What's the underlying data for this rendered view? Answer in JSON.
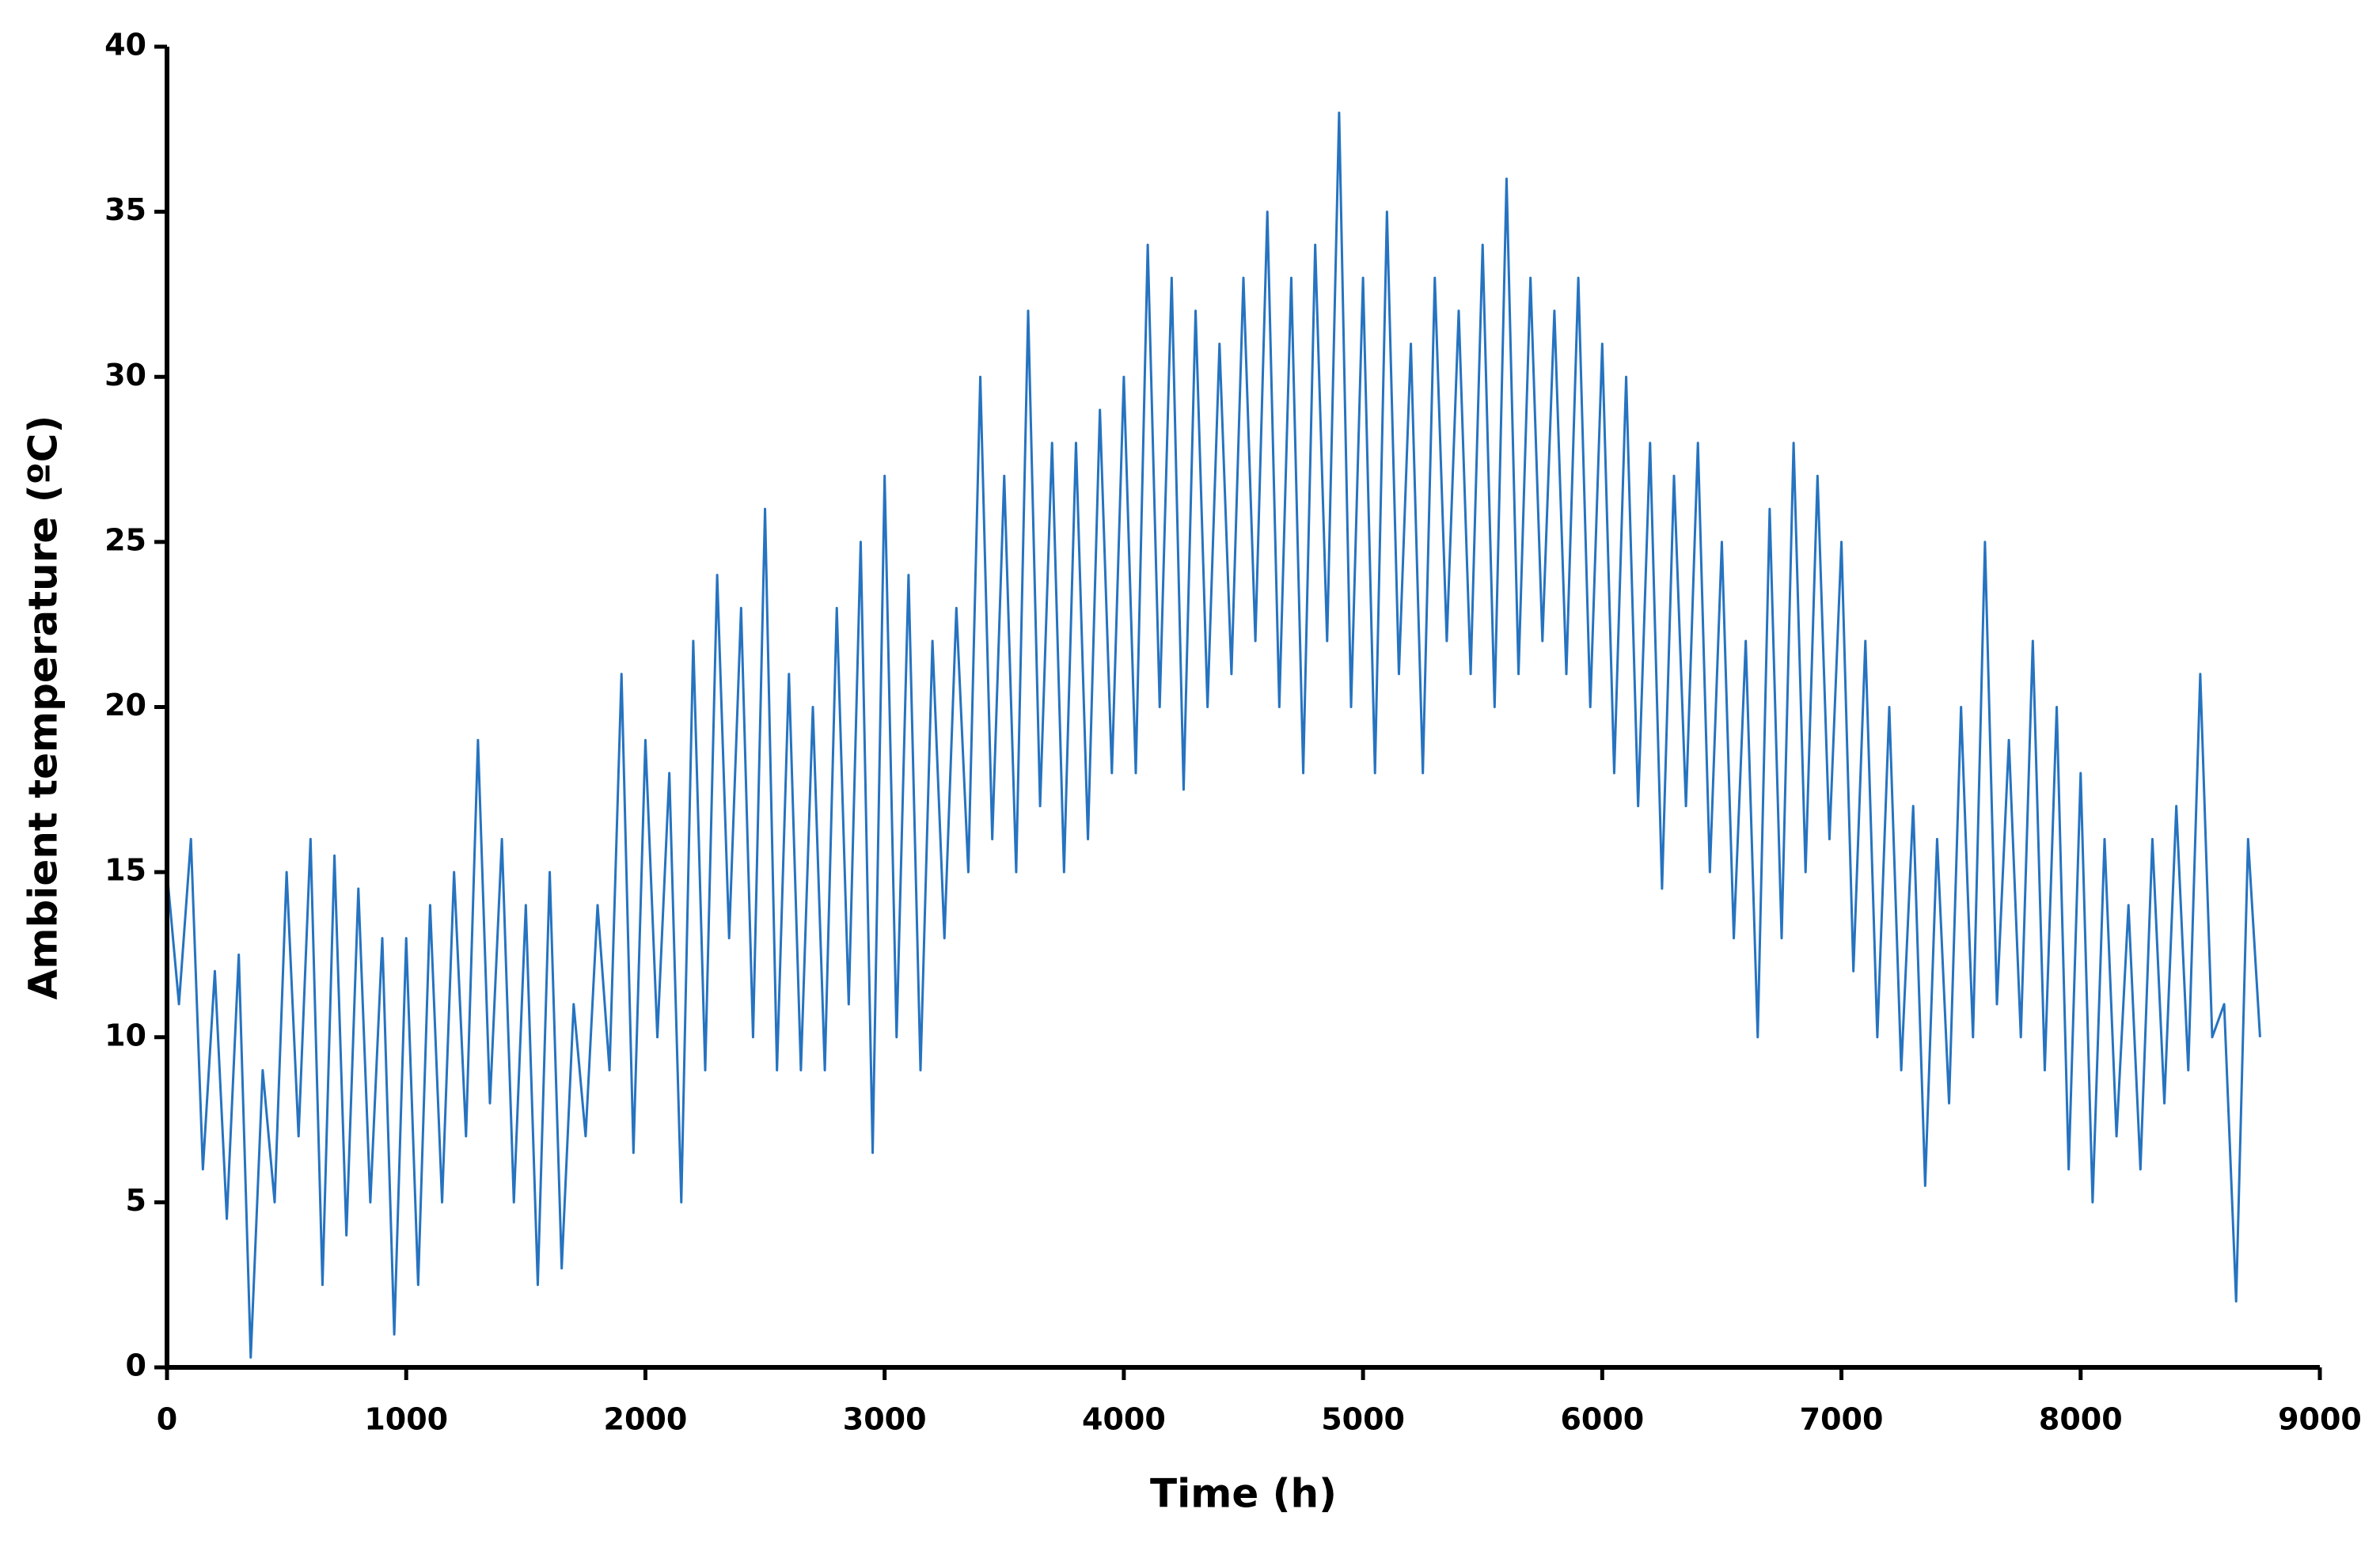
{
  "chart_data": {
    "type": "line",
    "xlabel": "Time (h)",
    "ylabel": "Ambient temperature (ºC)",
    "color": "#2673c0",
    "xlim": [
      0,
      9000
    ],
    "xticks": [
      0,
      1000,
      2000,
      3000,
      4000,
      5000,
      6000,
      7000,
      8000,
      9000
    ],
    "ylim": [
      0,
      40
    ],
    "yticks": [
      0,
      5,
      10,
      15,
      20,
      25,
      30,
      35,
      40
    ],
    "grid": false,
    "x": [
      0,
      50,
      100,
      150,
      200,
      250,
      300,
      350,
      400,
      450,
      500,
      550,
      600,
      650,
      700,
      750,
      800,
      850,
      900,
      950,
      1000,
      1050,
      1100,
      1150,
      1200,
      1250,
      1300,
      1350,
      1400,
      1450,
      1500,
      1550,
      1600,
      1650,
      1700,
      1750,
      1800,
      1850,
      1900,
      1950,
      2000,
      2050,
      2100,
      2150,
      2200,
      2250,
      2300,
      2350,
      2400,
      2450,
      2500,
      2550,
      2600,
      2650,
      2700,
      2750,
      2800,
      2850,
      2900,
      2950,
      3000,
      3050,
      3100,
      3150,
      3200,
      3250,
      3300,
      3350,
      3400,
      3450,
      3500,
      3550,
      3600,
      3650,
      3700,
      3750,
      3800,
      3850,
      3900,
      3950,
      4000,
      4050,
      4100,
      4150,
      4200,
      4250,
      4300,
      4350,
      4400,
      4450,
      4500,
      4550,
      4600,
      4650,
      4700,
      4750,
      4800,
      4850,
      4900,
      4950,
      5000,
      5050,
      5100,
      5150,
      5200,
      5250,
      5300,
      5350,
      5400,
      5450,
      5500,
      5550,
      5600,
      5650,
      5700,
      5750,
      5800,
      5850,
      5900,
      5950,
      6000,
      6050,
      6100,
      6150,
      6200,
      6250,
      6300,
      6350,
      6400,
      6450,
      6500,
      6550,
      6600,
      6650,
      6700,
      6750,
      6800,
      6850,
      6900,
      6950,
      7000,
      7050,
      7100,
      7150,
      7200,
      7250,
      7300,
      7350,
      7400,
      7450,
      7500,
      7550,
      7600,
      7650,
      7700,
      7750,
      7800,
      7850,
      7900,
      7950,
      8000,
      8050,
      8100,
      8150,
      8200,
      8250,
      8300,
      8350,
      8400,
      8450,
      8500,
      8550,
      8600,
      8650,
      8700,
      8750
    ],
    "values": [
      15,
      11,
      16,
      6,
      12,
      4.5,
      12.5,
      0.3,
      9,
      5,
      15,
      7,
      16,
      2.5,
      15.5,
      4,
      14.5,
      5,
      13,
      1,
      13,
      2.5,
      14,
      5,
      15,
      7,
      19,
      8,
      16,
      5,
      14,
      2.5,
      15,
      3,
      11,
      7,
      14,
      9,
      21,
      6.5,
      19,
      10,
      18,
      5,
      22,
      9,
      24,
      13,
      23,
      10,
      26,
      9,
      21,
      9,
      20,
      9,
      23,
      11,
      25,
      6.5,
      27,
      10,
      24,
      9,
      22,
      13,
      23,
      15,
      30,
      16,
      27,
      15,
      32,
      17,
      28,
      15,
      28,
      16,
      29,
      18,
      30,
      18,
      34,
      20,
      33,
      17.5,
      32,
      20,
      31,
      21,
      33,
      22,
      35,
      20,
      33,
      18,
      34,
      22,
      38,
      20,
      33,
      18,
      35,
      21,
      31,
      18,
      33,
      22,
      32,
      21,
      34,
      20,
      36,
      21,
      33,
      22,
      32,
      21,
      33,
      20,
      31,
      18,
      30,
      17,
      28,
      14.5,
      27,
      17,
      28,
      15,
      25,
      13,
      22,
      10,
      26,
      13,
      28,
      15,
      27,
      16,
      25,
      12,
      22,
      10,
      20,
      9,
      17,
      5.5,
      16,
      8,
      20,
      10,
      25,
      11,
      19,
      10,
      22,
      9,
      20,
      6,
      18,
      5,
      16,
      7,
      14,
      6,
      16,
      8,
      17,
      9,
      21,
      10,
      11,
      2,
      16,
      10
    ]
  }
}
